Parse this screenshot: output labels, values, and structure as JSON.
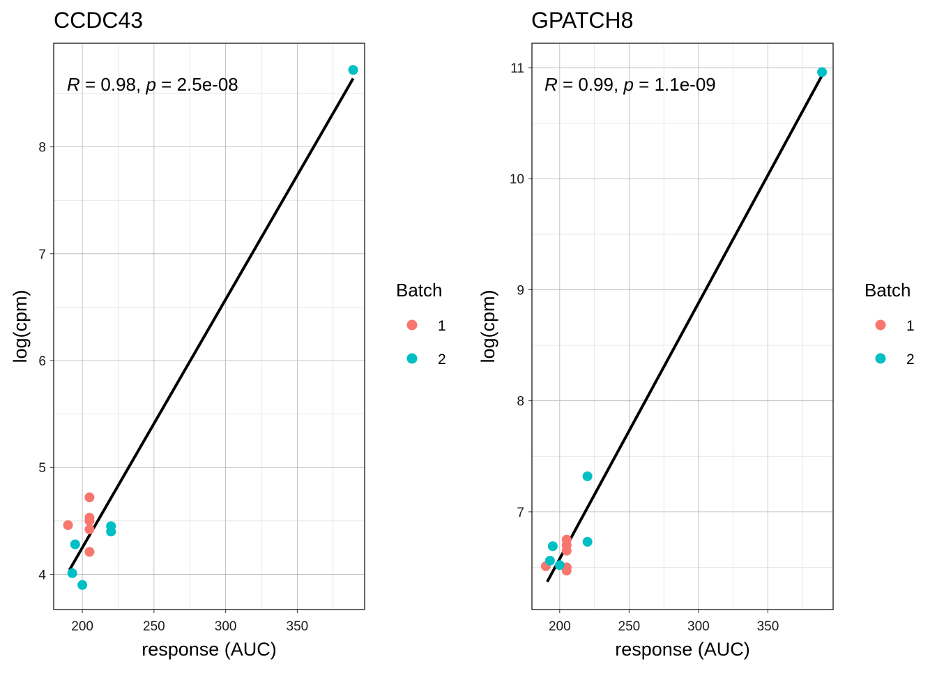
{
  "chart_data": [
    {
      "type": "scatter",
      "title": "CCDC43",
      "xlabel": "response (AUC)",
      "ylabel": "log(cpm)",
      "xlim": [
        180,
        397
      ],
      "ylim": [
        3.67,
        8.97
      ],
      "x_ticks": [
        200,
        250,
        300,
        350
      ],
      "y_ticks": [
        4,
        5,
        6,
        7,
        8
      ],
      "grid": true,
      "annotation": {
        "r_label": "R",
        "r_text": " = 0.98, ",
        "p_label": "p",
        "p_text": " = 2.5e-08"
      },
      "fit_line": {
        "x": [
          191,
          389
        ],
        "y": [
          4.04,
          8.64
        ]
      },
      "series": [
        {
          "name": "1",
          "color": "#F8766D",
          "points": [
            {
              "x": 190,
              "y": 4.46
            },
            {
              "x": 205,
              "y": 4.72
            },
            {
              "x": 205,
              "y": 4.53
            },
            {
              "x": 205,
              "y": 4.5
            },
            {
              "x": 205,
              "y": 4.42
            },
            {
              "x": 205,
              "y": 4.21
            }
          ]
        },
        {
          "name": "2",
          "color": "#00BFC4",
          "points": [
            {
              "x": 195,
              "y": 4.28
            },
            {
              "x": 193,
              "y": 4.01
            },
            {
              "x": 200,
              "y": 3.9
            },
            {
              "x": 220,
              "y": 4.45
            },
            {
              "x": 220,
              "y": 4.4
            },
            {
              "x": 389,
              "y": 8.72
            }
          ]
        }
      ],
      "legend": {
        "title": "Batch",
        "entries": [
          "1",
          "2"
        ],
        "position": "right"
      }
    },
    {
      "type": "scatter",
      "title": "GPATCH8",
      "xlabel": "response (AUC)",
      "ylabel": "log(cpm)",
      "xlim": [
        180,
        397
      ],
      "ylim": [
        6.12,
        11.22
      ],
      "x_ticks": [
        200,
        250,
        300,
        350
      ],
      "y_ticks": [
        7,
        8,
        9,
        10,
        11
      ],
      "grid": true,
      "annotation": {
        "r_label": "R",
        "r_text": " = 0.99, ",
        "p_label": "p",
        "p_text": " = 1.1e-09"
      },
      "fit_line": {
        "x": [
          191,
          389
        ],
        "y": [
          6.37,
          10.93
        ]
      },
      "series": [
        {
          "name": "1",
          "color": "#F8766D",
          "points": [
            {
              "x": 190,
              "y": 6.51
            },
            {
              "x": 205,
              "y": 6.75
            },
            {
              "x": 205,
              "y": 6.7
            },
            {
              "x": 205,
              "y": 6.65
            },
            {
              "x": 205,
              "y": 6.5
            },
            {
              "x": 205,
              "y": 6.47
            }
          ]
        },
        {
          "name": "2",
          "color": "#00BFC4",
          "points": [
            {
              "x": 195,
              "y": 6.69
            },
            {
              "x": 193,
              "y": 6.56
            },
            {
              "x": 200,
              "y": 6.52
            },
            {
              "x": 220,
              "y": 7.32
            },
            {
              "x": 220,
              "y": 6.73
            },
            {
              "x": 389,
              "y": 10.96
            }
          ]
        }
      ],
      "legend": {
        "title": "Batch",
        "entries": [
          "1",
          "2"
        ],
        "position": "right"
      }
    }
  ]
}
